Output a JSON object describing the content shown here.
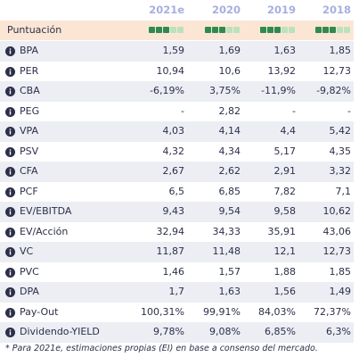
{
  "table": {
    "columns": [
      "2021e",
      "2020",
      "2019",
      "2018"
    ],
    "score_row": {
      "label": "Puntuación",
      "scores": [
        3,
        3,
        3,
        3
      ]
    },
    "rows": [
      {
        "label": "BPA",
        "values": [
          "1,59",
          "1,69",
          "1,63",
          "1,85"
        ]
      },
      {
        "label": "PER",
        "values": [
          "10,94",
          "10,6",
          "13,92",
          "12,73"
        ]
      },
      {
        "label": "CBA",
        "values": [
          "-6,19%",
          "3,75%",
          "-11,9%",
          "-9,82%"
        ]
      },
      {
        "label": "PEG",
        "values": [
          "-",
          "2,82",
          "-",
          "-"
        ]
      },
      {
        "label": "VPA",
        "values": [
          "4,03",
          "4,14",
          "4,4",
          "5,42"
        ]
      },
      {
        "label": "PSV",
        "values": [
          "4,32",
          "4,34",
          "5,17",
          "4,35"
        ]
      },
      {
        "label": "CFA",
        "values": [
          "2,67",
          "2,62",
          "2,91",
          "3,32"
        ]
      },
      {
        "label": "PCF",
        "values": [
          "6,5",
          "6,85",
          "7,82",
          "7,1"
        ]
      },
      {
        "label": "EV/EBITDA",
        "values": [
          "9,43",
          "9,54",
          "9,58",
          "10,62"
        ]
      },
      {
        "label": "EV/Acción",
        "values": [
          "32,94",
          "34,33",
          "35,91",
          "43,06"
        ]
      },
      {
        "label": "VC",
        "values": [
          "11,87",
          "11,48",
          "12,1",
          "12,73"
        ]
      },
      {
        "label": "PVC",
        "values": [
          "1,46",
          "1,57",
          "1,88",
          "1,85"
        ]
      },
      {
        "label": "DPA",
        "values": [
          "1,7",
          "1,63",
          "1,56",
          "1,49"
        ]
      },
      {
        "label": "Pay-Out",
        "values": [
          "100,31%",
          "99,91%",
          "84,03%",
          "72,37%"
        ]
      },
      {
        "label": "Dividendo-YIELD",
        "values": [
          "9,78%",
          "9,08%",
          "6,85%",
          "6,3%"
        ]
      }
    ],
    "footnote": "* Para 2021e, estimaciones propias (EI) en base a consenso del mercado."
  }
}
